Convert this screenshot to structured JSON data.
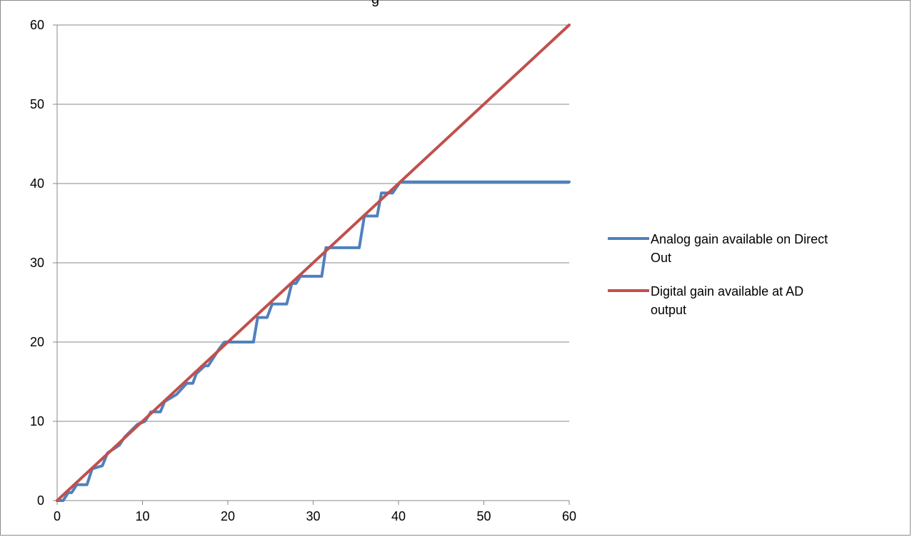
{
  "chart_data": {
    "type": "line",
    "title_fragment": "g",
    "xlim": [
      0,
      60
    ],
    "ylim": [
      0,
      60
    ],
    "x_ticks": [
      0,
      10,
      20,
      30,
      40,
      50,
      60
    ],
    "y_ticks": [
      0,
      10,
      20,
      30,
      40,
      50,
      60
    ],
    "x_tick_labels": [
      "0",
      "10",
      "20",
      "30",
      "40",
      "50",
      "60"
    ],
    "y_tick_labels": [
      "0",
      "10",
      "20",
      "30",
      "40",
      "50",
      "60"
    ],
    "grid": "horizontal",
    "legend_position": "right",
    "series": [
      {
        "name": "Analog gain available on Direct Out",
        "color": "#4f81bd",
        "points": [
          [
            0,
            0
          ],
          [
            0.7,
            0
          ],
          [
            1.3,
            1
          ],
          [
            1.7,
            1
          ],
          [
            2.3,
            2
          ],
          [
            3.5,
            2
          ],
          [
            4.1,
            4
          ],
          [
            5.3,
            4.4
          ],
          [
            5.9,
            6
          ],
          [
            7.3,
            7
          ],
          [
            7.9,
            8
          ],
          [
            9.4,
            9.6
          ],
          [
            10.3,
            10
          ],
          [
            11,
            11.2
          ],
          [
            12.1,
            11.2
          ],
          [
            12.6,
            12.5
          ],
          [
            14,
            13.4
          ],
          [
            15.2,
            14.8
          ],
          [
            15.9,
            14.8
          ],
          [
            16.3,
            16
          ],
          [
            17.3,
            17
          ],
          [
            17.7,
            17
          ],
          [
            18.3,
            18
          ],
          [
            18.9,
            19
          ],
          [
            19.6,
            20
          ],
          [
            23,
            20
          ],
          [
            23.5,
            23.1
          ],
          [
            24.6,
            23.1
          ],
          [
            25.2,
            24.8
          ],
          [
            26.9,
            24.8
          ],
          [
            27.5,
            27.4
          ],
          [
            28,
            27.4
          ],
          [
            28.5,
            28.3
          ],
          [
            31,
            28.3
          ],
          [
            31.5,
            31.9
          ],
          [
            35.4,
            31.9
          ],
          [
            36,
            35.9
          ],
          [
            37.5,
            35.9
          ],
          [
            38,
            38.8
          ],
          [
            39.3,
            38.8
          ],
          [
            40.2,
            40.2
          ],
          [
            60,
            40.2
          ]
        ]
      },
      {
        "name": "Digital gain available at AD output",
        "color": "#c0504d",
        "points": [
          [
            0,
            0
          ],
          [
            60,
            60
          ]
        ]
      }
    ],
    "legend_labels": [
      [
        "Analog gain available on Direct",
        "Out"
      ],
      [
        "Digital gain available at AD",
        "output"
      ]
    ]
  }
}
